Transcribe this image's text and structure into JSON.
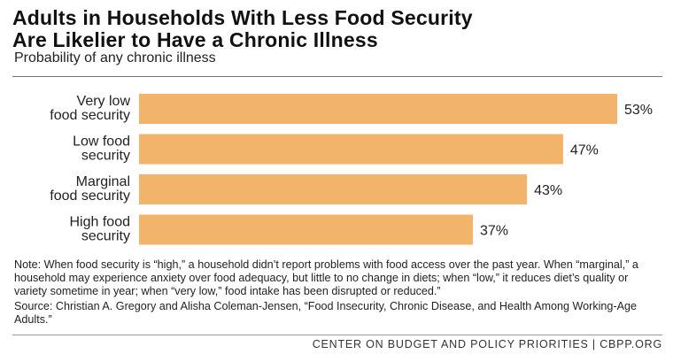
{
  "header": {
    "title_line1": "Adults in Households With Less Food Security",
    "title_line2": "Are Likelier to Have a Chronic Illness",
    "subtitle": "Probability of any chronic illness"
  },
  "chart_data": {
    "type": "bar",
    "orientation": "horizontal",
    "title": "Adults in Households With Less Food Security Are Likelier to Have a Chronic Illness",
    "subtitle": "Probability of any chronic illness",
    "categories": [
      [
        "Very low",
        "food security"
      ],
      [
        "Low food",
        "security"
      ],
      [
        "Marginal",
        "food security"
      ],
      [
        "High food",
        "security"
      ]
    ],
    "values": [
      53,
      47,
      43,
      37
    ],
    "value_labels": [
      "53%",
      "47%",
      "43%",
      "37%"
    ],
    "unit": "%",
    "xlim": [
      0,
      53
    ],
    "grid": false,
    "legend": "none",
    "bar_color": "#f2b36b"
  },
  "notes": {
    "note": "Note: When food security is “high,” a household didn’t report problems with food access over the past year. When “marginal,” a household may experience anxiety over food adequacy, but little to no change in diets; when “low,” it reduces diet’s quality or variety sometime in year; when “very low,” food intake has been disrupted or reduced.”",
    "source": "Source: Christian A. Gregory and Alisha Coleman-Jensen, “Food Insecurity, Chronic Disease, and Health Among Working-Age Adults.”"
  },
  "footer": {
    "text": "CENTER ON BUDGET AND POLICY PRIORITIES | CBPP.ORG"
  }
}
